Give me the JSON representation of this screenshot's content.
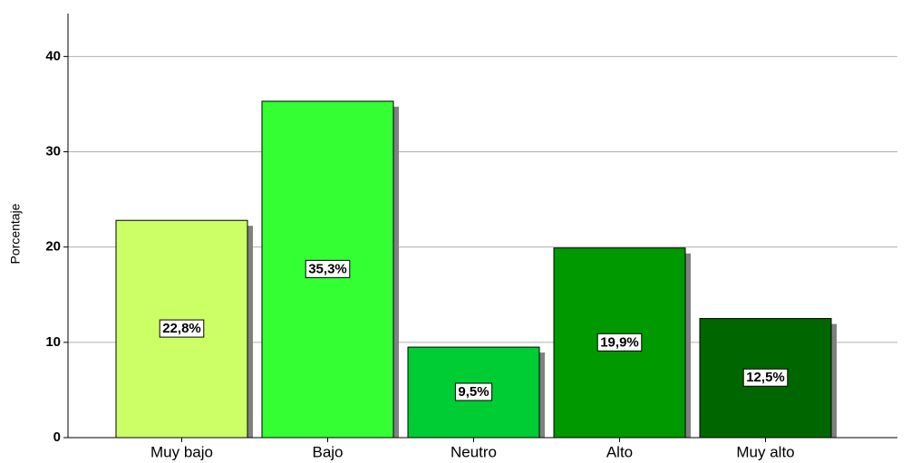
{
  "chart_data": {
    "type": "bar",
    "y_label": "Porcentaje",
    "categories": [
      "Muy bajo",
      "Bajo",
      "Neutro",
      "Alto",
      "Muy alto"
    ],
    "values": [
      22.8,
      35.3,
      9.5,
      19.9,
      12.5
    ],
    "value_labels": [
      "22,8%",
      "35,3%",
      "9,5%",
      "19,9%",
      "12,5%"
    ],
    "colors": [
      "#ccff66",
      "#33ff33",
      "#00cc33",
      "#009900",
      "#006600"
    ],
    "ylim": [
      0,
      44.5
    ],
    "yticks": [
      0,
      10,
      20,
      30,
      40
    ],
    "grid": true
  }
}
